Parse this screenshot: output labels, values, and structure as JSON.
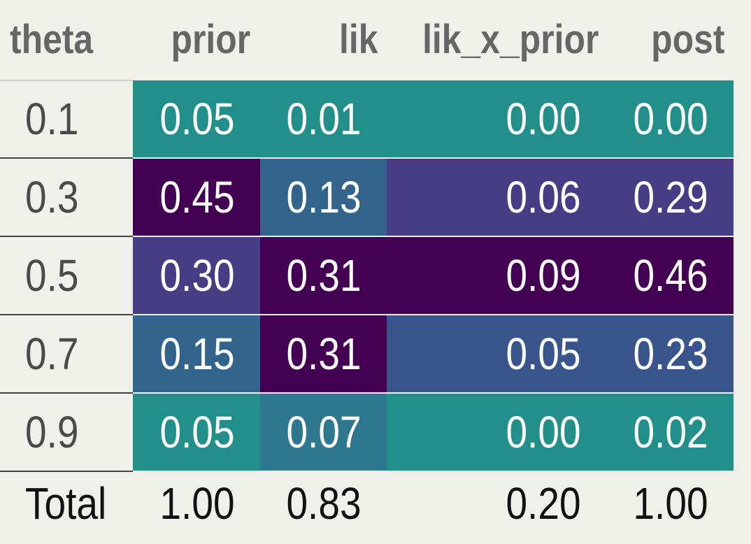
{
  "chart_data": {
    "type": "table",
    "columns": [
      "theta",
      "prior",
      "lik",
      "lik_x_prior",
      "post"
    ],
    "rows": [
      {
        "theta": "0.1",
        "prior": "0.05",
        "lik": "0.01",
        "lik_x_prior": "0.00",
        "post": "0.00"
      },
      {
        "theta": "0.3",
        "prior": "0.45",
        "lik": "0.13",
        "lik_x_prior": "0.06",
        "post": "0.29"
      },
      {
        "theta": "0.5",
        "prior": "0.30",
        "lik": "0.31",
        "lik_x_prior": "0.09",
        "post": "0.46"
      },
      {
        "theta": "0.7",
        "prior": "0.15",
        "lik": "0.31",
        "lik_x_prior": "0.05",
        "post": "0.23"
      },
      {
        "theta": "0.9",
        "prior": "0.05",
        "lik": "0.07",
        "lik_x_prior": "0.00",
        "post": "0.02"
      }
    ],
    "total": {
      "theta": "Total",
      "prior": "1.00",
      "lik": "0.83",
      "lik_x_prior": "0.20",
      "post": "1.00"
    },
    "colors": {
      "prior": [
        "#238f8a",
        "#440154",
        "#463d85",
        "#33648b",
        "#238f8a"
      ],
      "lik": [
        "#238f8a",
        "#33648b",
        "#440154",
        "#440154",
        "#2d788e"
      ],
      "lik_x_prior": [
        "#238f8a",
        "#463d85",
        "#440154",
        "#3a558b",
        "#238f8a"
      ],
      "post": [
        "#238f8a",
        "#463d85",
        "#440154",
        "#3a558b",
        "#238f8a"
      ]
    }
  }
}
